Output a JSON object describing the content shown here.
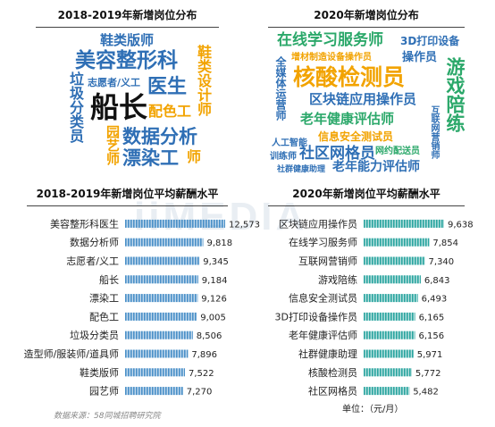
{
  "titles": {
    "cloud_2018": "2018-2019年新增岗位分布",
    "cloud_2020": "2020年新增岗位分布",
    "salary_2018": "2018-2019年新增岗位平均薪酬水平",
    "salary_2020": "2020年新增岗位平均薪酬水平"
  },
  "watermark": "iiMEDIA",
  "cloud_2018_words": [
    {
      "text": "鞋类版师",
      "color": "#2f6fb5"
    },
    {
      "text": "美容整形科",
      "color": "#2f6fb5"
    },
    {
      "text": "鞋类设计师",
      "color": "#f2a300"
    },
    {
      "text": "志愿者/义工",
      "color": "#2f6fb5"
    },
    {
      "text": "垃圾分类员",
      "color": "#2f6fb5"
    },
    {
      "text": "船长",
      "color": "#111111"
    },
    {
      "text": "医生",
      "color": "#2f6fb5"
    },
    {
      "text": "配色工",
      "color": "#f2a300"
    },
    {
      "text": "数据分析",
      "color": "#2f6fb5"
    },
    {
      "text": "园艺师",
      "color": "#f2a300"
    },
    {
      "text": "漂染工",
      "color": "#2f6fb5"
    },
    {
      "text": "师",
      "color": "#f2a300"
    }
  ],
  "cloud_2020_words": [
    {
      "text": "在线学习服务师",
      "color": "#2ba86a"
    },
    {
      "text": "3D打印设备",
      "color": "#2f6fb5"
    },
    {
      "text": "增材制造设备操作员",
      "color": "#f2a300"
    },
    {
      "text": "操作员",
      "color": "#2f6fb5"
    },
    {
      "text": "全媒体运营师",
      "color": "#2f6fb5"
    },
    {
      "text": "核酸检测员",
      "color": "#f2a300"
    },
    {
      "text": "游戏陪练",
      "color": "#2ba86a"
    },
    {
      "text": "区块链应用操作员",
      "color": "#2f6fb5"
    },
    {
      "text": "老年健康评估师",
      "color": "#2ba86a"
    },
    {
      "text": "互联网营销师",
      "color": "#2f6fb5"
    },
    {
      "text": "信息安全测试员",
      "color": "#f2a300"
    },
    {
      "text": "人工智能",
      "color": "#2f6fb5"
    },
    {
      "text": "训练师",
      "color": "#2f6fb5"
    },
    {
      "text": "社区网格员",
      "color": "#2f6fb5"
    },
    {
      "text": "网约配送员",
      "color": "#2ba86a"
    },
    {
      "text": "社群健康助理",
      "color": "#2f6fb5"
    },
    {
      "text": "老年能力评估师",
      "color": "#2f6fb5"
    }
  ],
  "chart_data": [
    {
      "type": "bar",
      "title": "2018-2019年新增岗位平均薪酬水平",
      "categories": [
        "美容整形科医生",
        "数据分析师",
        "志愿者/义工",
        "船长",
        "漂染工",
        "配色工",
        "垃圾分类员",
        "造型师/服装师/道具师",
        "鞋类版师",
        "园艺师"
      ],
      "values": [
        12573,
        9818,
        9345,
        9184,
        9126,
        9005,
        8506,
        7896,
        7522,
        7270
      ],
      "value_labels": [
        "12,573",
        "9,818",
        "9,345",
        "9,184",
        "9,126",
        "9,005",
        "8,506",
        "7,896",
        "7,522",
        "7,270"
      ],
      "orientation": "horizontal",
      "bar_color": "#4a90c8",
      "grid": false
    },
    {
      "type": "bar",
      "title": "2020年新增岗位平均薪酬水平",
      "categories": [
        "区块链应用操作员",
        "在线学习服务师",
        "互联网营销师",
        "游戏陪练",
        "信息安全测试员",
        "3D打印设备操作员",
        "老年健康评估师",
        "社群健康助理",
        "核酸检测员",
        "社区网格员"
      ],
      "values": [
        9638,
        7854,
        7340,
        6843,
        6493,
        6165,
        6156,
        5971,
        5772,
        5482
      ],
      "value_labels": [
        "9,638",
        "7,854",
        "7,340",
        "6,843",
        "6,493",
        "6,165",
        "6,156",
        "5,971",
        "5,772",
        "5,482"
      ],
      "orientation": "horizontal",
      "bar_color": "#2ba5a0",
      "grid": false
    }
  ],
  "unit_note": "单位：（元/月）",
  "source_note": "数据来源：58同城招聘研究院"
}
